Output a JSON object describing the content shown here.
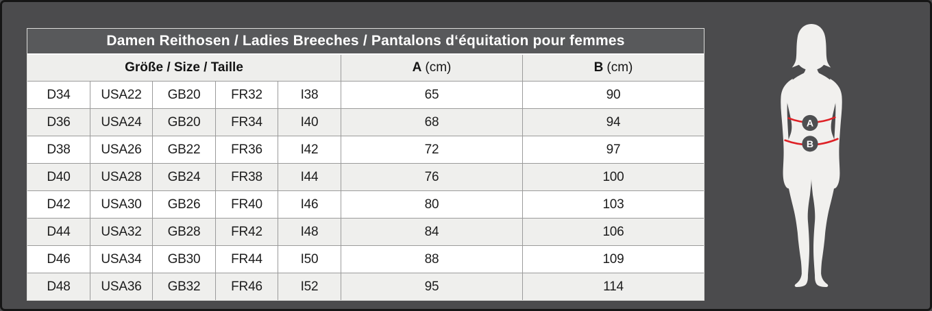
{
  "title": "Damen Reithosen / Ladies Breeches / Pantalons d‘équitation pour femmes",
  "table": {
    "size_header": "Größe / Size / Taille",
    "col_a": {
      "letter": "A",
      "unit": "(cm)"
    },
    "col_b": {
      "letter": "B",
      "unit": "(cm)"
    },
    "rows": [
      {
        "d": "D34",
        "usa": "USA22",
        "gb": "GB20",
        "fr": "FR32",
        "i": "I38",
        "a": "65",
        "b": "90"
      },
      {
        "d": "D36",
        "usa": "USA24",
        "gb": "GB20",
        "fr": "FR34",
        "i": "I40",
        "a": "68",
        "b": "94"
      },
      {
        "d": "D38",
        "usa": "USA26",
        "gb": "GB22",
        "fr": "FR36",
        "i": "I42",
        "a": "72",
        "b": "97"
      },
      {
        "d": "D40",
        "usa": "USA28",
        "gb": "GB24",
        "fr": "FR38",
        "i": "I44",
        "a": "76",
        "b": "100"
      },
      {
        "d": "D42",
        "usa": "USA30",
        "gb": "GB26",
        "fr": "FR40",
        "i": "I46",
        "a": "80",
        "b": "103"
      },
      {
        "d": "D44",
        "usa": "USA32",
        "gb": "GB28",
        "fr": "FR42",
        "i": "I48",
        "a": "84",
        "b": "106"
      },
      {
        "d": "D46",
        "usa": "USA34",
        "gb": "GB30",
        "fr": "FR44",
        "i": "I50",
        "a": "88",
        "b": "109"
      },
      {
        "d": "D48",
        "usa": "USA36",
        "gb": "GB32",
        "fr": "FR46",
        "i": "I52",
        "a": "95",
        "b": "114"
      }
    ]
  },
  "figure": {
    "marker_a": "A",
    "marker_b": "B"
  },
  "colors": {
    "panel_bg": "#4b4b4d",
    "title_bg": "#58595b",
    "row_alt": "#efefed",
    "grid": "#9a9a9a",
    "measure_red": "#de2126",
    "silhouette": "#f1f0ee",
    "marker_bg": "#4e4f51"
  }
}
